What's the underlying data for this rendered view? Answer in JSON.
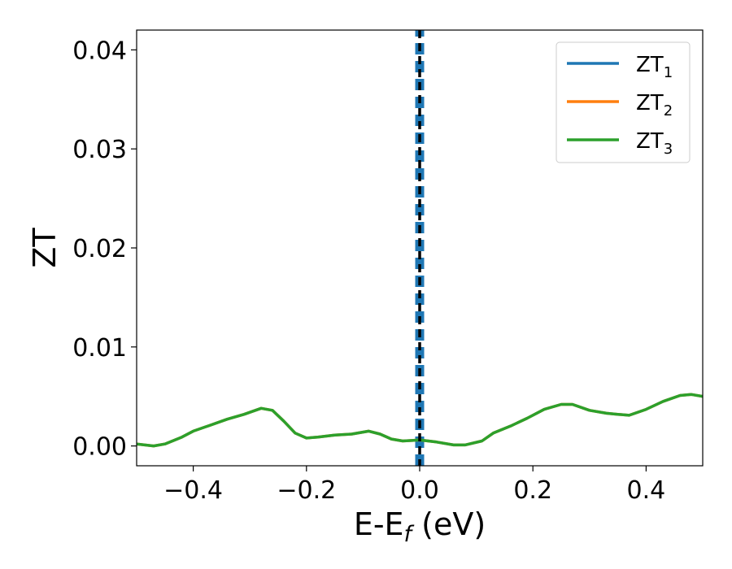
{
  "chart_data": {
    "type": "line",
    "xlabel": "E-E",
    "xlabel_sub": "f",
    "xlabel_unit": " (eV)",
    "ylabel": "ZT",
    "xlim": [
      -0.5,
      0.5
    ],
    "ylim": [
      -0.002,
      0.042
    ],
    "xticks": [
      -0.4,
      -0.2,
      0.0,
      0.2,
      0.4
    ],
    "xtick_labels": [
      "−0.4",
      "−0.2",
      "0.0",
      "0.2",
      "0.4"
    ],
    "yticks": [
      0.0,
      0.01,
      0.02,
      0.03,
      0.04
    ],
    "ytick_labels": [
      "0.00",
      "0.01",
      "0.02",
      "0.03",
      "0.04"
    ],
    "grid": false,
    "legend_placement": "top-right",
    "fermi_line": {
      "x": 0.0,
      "color": "#000000",
      "style": "dashed"
    },
    "series": [
      {
        "name": "ZT",
        "sub": "1",
        "color": "#1f77b4",
        "style": "dashed",
        "x": [
          0.0,
          0.0
        ],
        "y": [
          -0.002,
          0.042
        ]
      },
      {
        "name": "ZT",
        "sub": "2",
        "color": "#ff7f0e",
        "style": "solid",
        "x": [
          -0.5,
          -0.47,
          -0.45,
          -0.42,
          -0.4,
          -0.37,
          -0.34,
          -0.31,
          -0.28,
          -0.26,
          -0.24,
          -0.22,
          -0.2,
          -0.18,
          -0.15,
          -0.12,
          -0.09,
          -0.07,
          -0.05,
          -0.03,
          0.0,
          0.03,
          0.06,
          0.08,
          0.11,
          0.13,
          0.16,
          0.19,
          0.22,
          0.25,
          0.27,
          0.3,
          0.33,
          0.35,
          0.37,
          0.4,
          0.43,
          0.46,
          0.48,
          0.5
        ],
        "y": [
          0.0002,
          0.0,
          0.0002,
          0.0009,
          0.0015,
          0.0021,
          0.0027,
          0.0032,
          0.0038,
          0.0036,
          0.0025,
          0.0013,
          0.0008,
          0.0009,
          0.0011,
          0.0012,
          0.0015,
          0.0012,
          0.0007,
          0.0005,
          0.0006,
          0.0004,
          0.0001,
          0.0001,
          0.0005,
          0.0013,
          0.002,
          0.0028,
          0.0037,
          0.0042,
          0.0042,
          0.0036,
          0.0033,
          0.0032,
          0.0031,
          0.0037,
          0.0045,
          0.0051,
          0.0052,
          0.005
        ]
      },
      {
        "name": "ZT",
        "sub": "3",
        "color": "#2ca02c",
        "style": "solid",
        "x": [
          -0.5,
          -0.47,
          -0.45,
          -0.42,
          -0.4,
          -0.37,
          -0.34,
          -0.31,
          -0.28,
          -0.26,
          -0.24,
          -0.22,
          -0.2,
          -0.18,
          -0.15,
          -0.12,
          -0.09,
          -0.07,
          -0.05,
          -0.03,
          0.0,
          0.03,
          0.06,
          0.08,
          0.11,
          0.13,
          0.16,
          0.19,
          0.22,
          0.25,
          0.27,
          0.3,
          0.33,
          0.35,
          0.37,
          0.4,
          0.43,
          0.46,
          0.48,
          0.5
        ],
        "y": [
          0.0002,
          0.0,
          0.0002,
          0.0009,
          0.0015,
          0.0021,
          0.0027,
          0.0032,
          0.0038,
          0.0036,
          0.0025,
          0.0013,
          0.0008,
          0.0009,
          0.0011,
          0.0012,
          0.0015,
          0.0012,
          0.0007,
          0.0005,
          0.0006,
          0.0004,
          0.0001,
          0.0001,
          0.0005,
          0.0013,
          0.002,
          0.0028,
          0.0037,
          0.0042,
          0.0042,
          0.0036,
          0.0033,
          0.0032,
          0.0031,
          0.0037,
          0.0045,
          0.0051,
          0.0052,
          0.005
        ]
      }
    ]
  }
}
